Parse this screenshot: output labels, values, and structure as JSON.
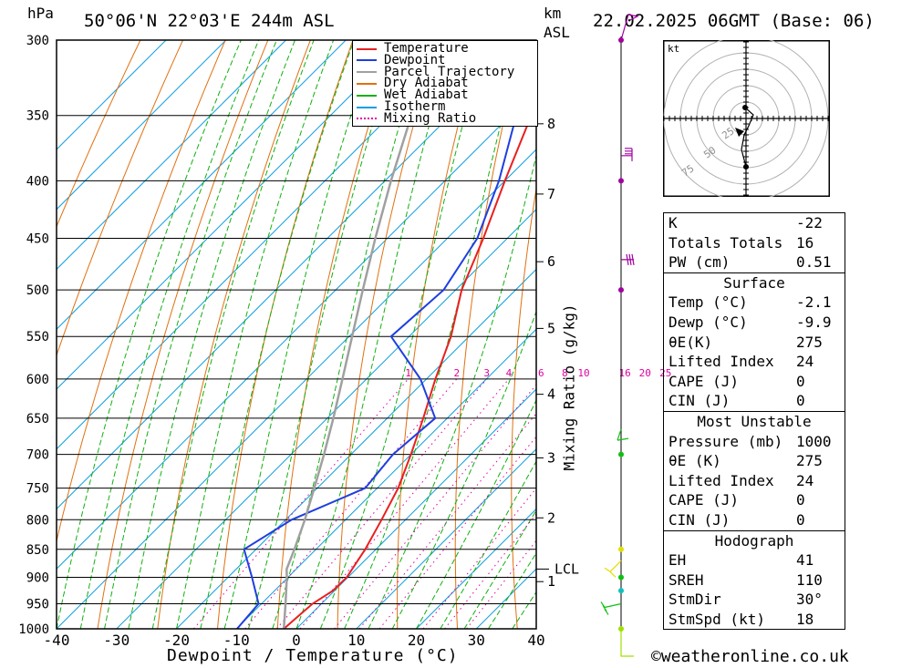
{
  "header": {
    "pressure_unit": "hPa",
    "location": "50°06'N 22°03'E 244m ASL",
    "km_label": "km",
    "asl_label": "ASL",
    "datetime": "22.02.2025 06GMT (Base: 06)"
  },
  "chart_data": {
    "type": "line",
    "subtype": "skew-t log-p",
    "xlabel": "Dewpoint / Temperature (°C)",
    "ylabel_left": "hPa",
    "ylabel_right": "Mixing Ratio (g/kg)",
    "x_ticks": [
      -40,
      -30,
      -20,
      -10,
      0,
      10,
      20,
      30,
      40
    ],
    "pressure_levels": [
      300,
      350,
      400,
      450,
      500,
      550,
      600,
      650,
      700,
      750,
      800,
      850,
      900,
      950,
      1000
    ],
    "height_km_ticks": [
      {
        "label": "8",
        "p": 356
      },
      {
        "label": "7",
        "p": 411
      },
      {
        "label": "6",
        "p": 472
      },
      {
        "label": "5",
        "p": 541
      },
      {
        "label": "4",
        "p": 619
      },
      {
        "label": "3",
        "p": 705
      },
      {
        "label": "2",
        "p": 797
      },
      {
        "label": "1",
        "p": 908
      }
    ],
    "lcl_label": "LCL",
    "lcl_pressure": 885,
    "mixing_ratio_labels": [
      "1",
      "2",
      "3",
      "4",
      "6",
      "8",
      "10",
      "16",
      "20",
      "25"
    ],
    "legend": [
      "Temperature",
      "Dewpoint",
      "Parcel Trajectory",
      "Dry Adiabat",
      "Wet Adiabat",
      "Isotherm",
      "Mixing Ratio"
    ],
    "legend_position": "top-right",
    "colors": {
      "temperature": "#e82020",
      "dewpoint": "#1f3fe0",
      "parcel": "#a0a0a0",
      "dry_adiabat": "#e07010",
      "wet_adiabat": "#10b010",
      "isotherm": "#10a0e0",
      "mixing_ratio": "#e000a0"
    },
    "series": [
      {
        "name": "Temperature",
        "points": [
          {
            "p": 1000,
            "t": -2.1
          },
          {
            "p": 975,
            "t": -1.8
          },
          {
            "p": 950,
            "t": -1.5
          },
          {
            "p": 925,
            "t": -0.3
          },
          {
            "p": 900,
            "t": -0.2
          },
          {
            "p": 850,
            "t": -1.8
          },
          {
            "p": 800,
            "t": -4.0
          },
          {
            "p": 750,
            "t": -6.5
          },
          {
            "p": 700,
            "t": -10.0
          },
          {
            "p": 650,
            "t": -14.0
          },
          {
            "p": 600,
            "t": -18.5
          },
          {
            "p": 550,
            "t": -23.0
          },
          {
            "p": 500,
            "t": -29.0
          },
          {
            "p": 450,
            "t": -34.0
          },
          {
            "p": 400,
            "t": -40.0
          },
          {
            "p": 350,
            "t": -46.5
          },
          {
            "p": 300,
            "t": -54.0
          }
        ]
      },
      {
        "name": "Dewpoint",
        "points": [
          {
            "p": 1000,
            "t": -9.9
          },
          {
            "p": 950,
            "t": -10.5
          },
          {
            "p": 900,
            "t": -16.0
          },
          {
            "p": 850,
            "t": -22.0
          },
          {
            "p": 800,
            "t": -19.0
          },
          {
            "p": 750,
            "t": -12.0
          },
          {
            "p": 700,
            "t": -13.0
          },
          {
            "p": 650,
            "t": -12.0
          },
          {
            "p": 600,
            "t": -21.0
          },
          {
            "p": 550,
            "t": -33.0
          },
          {
            "p": 500,
            "t": -32.0
          },
          {
            "p": 450,
            "t": -35.0
          },
          {
            "p": 400,
            "t": -41.0
          },
          {
            "p": 350,
            "t": -49.0
          },
          {
            "p": 300,
            "t": -58.0
          }
        ]
      },
      {
        "name": "Parcel Trajectory",
        "points": [
          {
            "p": 1000,
            "t": -2.1
          },
          {
            "p": 950,
            "t": -6.0
          },
          {
            "p": 900,
            "t": -10.2
          },
          {
            "p": 885,
            "t": -11.6
          },
          {
            "p": 850,
            "t": -13.6
          },
          {
            "p": 800,
            "t": -16.8
          },
          {
            "p": 750,
            "t": -20.5
          },
          {
            "p": 700,
            "t": -24.5
          },
          {
            "p": 650,
            "t": -29.0
          },
          {
            "p": 600,
            "t": -34.0
          },
          {
            "p": 550,
            "t": -39.5
          },
          {
            "p": 500,
            "t": -45.5
          },
          {
            "p": 450,
            "t": -52.0
          },
          {
            "p": 400,
            "t": -59.0
          },
          {
            "p": 350,
            "t": -66.5
          },
          {
            "p": 300,
            "t": -74.5
          }
        ]
      }
    ]
  },
  "hodograph": {
    "unit_label": "kt",
    "ring_labels": [
      "25",
      "50",
      "75"
    ]
  },
  "indices": [
    {
      "label": "K",
      "value": "-22"
    },
    {
      "label": "Totals Totals",
      "value": "16"
    },
    {
      "label": "PW (cm)",
      "value": "0.51"
    }
  ],
  "surface": {
    "title": "Surface",
    "rows": [
      {
        "label": "Temp (°C)",
        "value": "-2.1"
      },
      {
        "label": "Dewp (°C)",
        "value": "-9.9"
      },
      {
        "label": "θE(K)",
        "value": "275"
      },
      {
        "label": "Lifted Index",
        "value": "24"
      },
      {
        "label": "CAPE (J)",
        "value": "0"
      },
      {
        "label": "CIN (J)",
        "value": "0"
      }
    ]
  },
  "most_unstable": {
    "title": "Most Unstable",
    "rows": [
      {
        "label": "Pressure (mb)",
        "value": "1000"
      },
      {
        "label": "θE (K)",
        "value": "275"
      },
      {
        "label": "Lifted Index",
        "value": "24"
      },
      {
        "label": "CAPE (J)",
        "value": "0"
      },
      {
        "label": "CIN (J)",
        "value": "0"
      }
    ]
  },
  "hodograph_table": {
    "title": "Hodograph",
    "rows": [
      {
        "label": "EH",
        "value": "41"
      },
      {
        "label": "SREH",
        "value": "110"
      },
      {
        "label": "StmDir",
        "value": "30°"
      },
      {
        "label": "StmSpd (kt)",
        "value": "18"
      }
    ]
  },
  "footer": {
    "copyright": "©weatheronline.co.uk"
  }
}
